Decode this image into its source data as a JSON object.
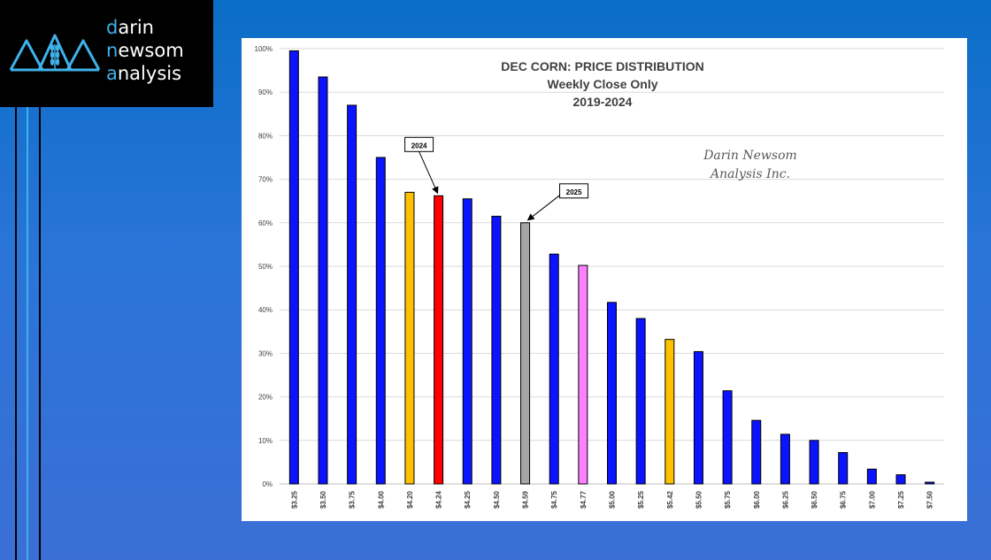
{
  "brand": {
    "lines": [
      {
        "lead": "d",
        "rest": "arin"
      },
      {
        "lead": "n",
        "rest": "ewsom"
      },
      {
        "lead": "a",
        "rest": "nalysis"
      }
    ],
    "accent_color": "#3fb2ea",
    "logo_icon": "triple-mountain-wheat-icon"
  },
  "chart_data": {
    "type": "bar",
    "title": [
      "DEC CORN: PRICE DISTRIBUTION",
      "Weekly Close Only",
      "2019-2024"
    ],
    "watermark": [
      "Darin Newsom",
      "Analysis Inc."
    ],
    "xlabel": "",
    "ylabel": "",
    "ylim": [
      0,
      100
    ],
    "yticks": [
      0,
      10,
      20,
      30,
      40,
      50,
      60,
      70,
      80,
      90,
      100
    ],
    "ytick_suffix": "%",
    "grid": true,
    "categories": [
      "$3.25",
      "$3.50",
      "$3.75",
      "$4.00",
      "$4.20",
      "$4.24",
      "$4.25",
      "$4.50",
      "$4.59",
      "$4.75",
      "$4.77",
      "$5.00",
      "$5.25",
      "$5.42",
      "$5.50",
      "$5.75",
      "$6.00",
      "$6.25",
      "$6.50",
      "$6.75",
      "$7.00",
      "$7.25",
      "$7.50"
    ],
    "values": [
      99.5,
      93.5,
      87,
      75,
      67,
      66.2,
      65.5,
      61.5,
      60,
      52.8,
      50.2,
      41.7,
      38,
      33.2,
      30.4,
      21.4,
      14.6,
      11.4,
      10,
      7.2,
      3.4,
      2.1,
      0.4
    ],
    "colors": [
      "#0a14ff",
      "#0a14ff",
      "#0a14ff",
      "#0a14ff",
      "#ffc000",
      "#ff0000",
      "#0a14ff",
      "#0a14ff",
      "#a6a6a6",
      "#0a14ff",
      "#ff80ff",
      "#0a14ff",
      "#0a14ff",
      "#ffc000",
      "#0a14ff",
      "#0a14ff",
      "#0a14ff",
      "#0a14ff",
      "#0a14ff",
      "#0a14ff",
      "#0a14ff",
      "#0a14ff",
      "#0a14ff"
    ],
    "annotations": [
      {
        "text": "2024",
        "target_category": "$4.24"
      },
      {
        "text": "2025",
        "target_category": "$4.59"
      }
    ]
  }
}
